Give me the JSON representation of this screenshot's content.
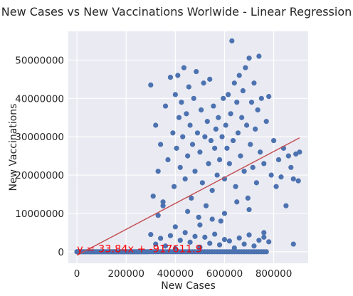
{
  "chart_data": {
    "type": "scatter",
    "title": "New Cases vs New Vaccinations Worlwide - Linear Regression",
    "xlabel": "New Cases",
    "ylabel": "New Vaccinations",
    "xlim": [
      -35000,
      940000
    ],
    "ylim": [
      -3000000,
      57500000
    ],
    "xticks": [
      0,
      200000,
      400000,
      600000,
      800000
    ],
    "yticks": [
      0,
      10000000,
      20000000,
      30000000,
      40000000,
      50000000
    ],
    "grid": true,
    "background": "#eaeaf2",
    "point_color": "#4c72b0",
    "line_color": "#c44e52",
    "annotation_color": "#ff0000",
    "regression": {
      "slope": 33.84,
      "intercept": -917611.9,
      "x_range": [
        0,
        905000
      ]
    },
    "annotation": "y = 33.84x + -917611.9",
    "points": [
      [
        0,
        0
      ],
      [
        0,
        0
      ],
      [
        4000,
        0
      ],
      [
        8000,
        0
      ],
      [
        12000,
        0
      ],
      [
        16000,
        0
      ],
      [
        20000,
        0
      ],
      [
        25000,
        0
      ],
      [
        30000,
        0
      ],
      [
        35000,
        0
      ],
      [
        40000,
        0
      ],
      [
        45000,
        0
      ],
      [
        50000,
        0
      ],
      [
        55000,
        0
      ],
      [
        60000,
        0
      ],
      [
        65000,
        0
      ],
      [
        70000,
        0
      ],
      [
        75000,
        0
      ],
      [
        80000,
        0
      ],
      [
        85000,
        0
      ],
      [
        90000,
        0
      ],
      [
        95000,
        0
      ],
      [
        100000,
        0
      ],
      [
        105000,
        0
      ],
      [
        110000,
        0
      ],
      [
        115000,
        0
      ],
      [
        120000,
        0
      ],
      [
        125000,
        0
      ],
      [
        130000,
        0
      ],
      [
        135000,
        0
      ],
      [
        140000,
        0
      ],
      [
        145000,
        0
      ],
      [
        150000,
        0
      ],
      [
        155000,
        0
      ],
      [
        160000,
        0
      ],
      [
        165000,
        0
      ],
      [
        170000,
        0
      ],
      [
        175000,
        0
      ],
      [
        180000,
        0
      ],
      [
        185000,
        0
      ],
      [
        190000,
        0
      ],
      [
        195000,
        0
      ],
      [
        200000,
        0
      ],
      [
        205000,
        0
      ],
      [
        210000,
        0
      ],
      [
        215000,
        0
      ],
      [
        220000,
        0
      ],
      [
        225000,
        0
      ],
      [
        230000,
        0
      ],
      [
        235000,
        0
      ],
      [
        240000,
        0
      ],
      [
        245000,
        0
      ],
      [
        250000,
        0
      ],
      [
        255000,
        0
      ],
      [
        260000,
        0
      ],
      [
        265000,
        0
      ],
      [
        270000,
        0
      ],
      [
        275000,
        0
      ],
      [
        280000,
        0
      ],
      [
        285000,
        0
      ],
      [
        290000,
        0
      ],
      [
        300000,
        0
      ],
      [
        310000,
        0
      ],
      [
        320000,
        0
      ],
      [
        330000,
        0
      ],
      [
        340000,
        0
      ],
      [
        350000,
        0
      ],
      [
        360000,
        0
      ],
      [
        370000,
        0
      ],
      [
        380000,
        0
      ],
      [
        390000,
        0
      ],
      [
        400000,
        0
      ],
      [
        410000,
        0
      ],
      [
        420000,
        0
      ],
      [
        430000,
        0
      ],
      [
        440000,
        0
      ],
      [
        450000,
        0
      ],
      [
        460000,
        0
      ],
      [
        470000,
        0
      ],
      [
        480000,
        0
      ],
      [
        490000,
        0
      ],
      [
        500000,
        0
      ],
      [
        510000,
        0
      ],
      [
        520000,
        0
      ],
      [
        530000,
        0
      ],
      [
        540000,
        0
      ],
      [
        550000,
        0
      ],
      [
        560000,
        0
      ],
      [
        570000,
        0
      ],
      [
        580000,
        0
      ],
      [
        590000,
        0
      ],
      [
        600000,
        0
      ],
      [
        610000,
        0
      ],
      [
        620000,
        0
      ],
      [
        630000,
        0
      ],
      [
        640000,
        0
      ],
      [
        650000,
        0
      ],
      [
        660000,
        0
      ],
      [
        670000,
        0
      ],
      [
        680000,
        0
      ],
      [
        690000,
        0
      ],
      [
        700000,
        0
      ],
      [
        710000,
        0
      ],
      [
        720000,
        0
      ],
      [
        730000,
        0
      ],
      [
        740000,
        0
      ],
      [
        750000,
        0
      ],
      [
        760000,
        0
      ],
      [
        770000,
        0
      ],
      [
        300000,
        4500000
      ],
      [
        320000,
        2000000
      ],
      [
        340000,
        3500000
      ],
      [
        360000,
        1500000
      ],
      [
        380000,
        4200000
      ],
      [
        400000,
        800000
      ],
      [
        420000,
        3000000
      ],
      [
        440000,
        5000000
      ],
      [
        460000,
        2500000
      ],
      [
        480000,
        4000000
      ],
      [
        500000,
        1200000
      ],
      [
        520000,
        3800000
      ],
      [
        540000,
        2200000
      ],
      [
        560000,
        4600000
      ],
      [
        580000,
        1800000
      ],
      [
        600000,
        3200000
      ],
      [
        620000,
        2800000
      ],
      [
        640000,
        1000000
      ],
      [
        660000,
        3600000
      ],
      [
        680000,
        2000000
      ],
      [
        700000,
        4400000
      ],
      [
        720000,
        1500000
      ],
      [
        740000,
        3000000
      ],
      [
        760000,
        3800000
      ],
      [
        780000,
        2600000
      ],
      [
        760000,
        5000000
      ],
      [
        300000,
        43500000
      ],
      [
        310000,
        14500000
      ],
      [
        320000,
        33000000
      ],
      [
        330000,
        21000000
      ],
      [
        340000,
        28000000
      ],
      [
        350000,
        12000000
      ],
      [
        360000,
        38000000
      ],
      [
        370000,
        24000000
      ],
      [
        380000,
        45500000
      ],
      [
        390000,
        31000000
      ],
      [
        395000,
        17000000
      ],
      [
        400000,
        41000000
      ],
      [
        405000,
        27000000
      ],
      [
        410000,
        46000000
      ],
      [
        415000,
        35000000
      ],
      [
        420000,
        22000000
      ],
      [
        425000,
        39000000
      ],
      [
        430000,
        30000000
      ],
      [
        435000,
        48000000
      ],
      [
        440000,
        19000000
      ],
      [
        445000,
        36000000
      ],
      [
        450000,
        25000000
      ],
      [
        455000,
        43000000
      ],
      [
        460000,
        33000000
      ],
      [
        465000,
        14000000
      ],
      [
        470000,
        28000000
      ],
      [
        475000,
        40000000
      ],
      [
        480000,
        21000000
      ],
      [
        485000,
        47000000
      ],
      [
        490000,
        31000000
      ],
      [
        495000,
        9000000
      ],
      [
        500000,
        26000000
      ],
      [
        505000,
        37000000
      ],
      [
        510000,
        18000000
      ],
      [
        515000,
        44000000
      ],
      [
        520000,
        30000000
      ],
      [
        525000,
        12000000
      ],
      [
        530000,
        34000000
      ],
      [
        535000,
        23000000
      ],
      [
        540000,
        45000000
      ],
      [
        545000,
        29000000
      ],
      [
        550000,
        16000000
      ],
      [
        555000,
        38000000
      ],
      [
        560000,
        27000000
      ],
      [
        565000,
        32000000
      ],
      [
        570000,
        20000000
      ],
      [
        575000,
        35000000
      ],
      [
        580000,
        24000000
      ],
      [
        585000,
        8000000
      ],
      [
        590000,
        30000000
      ],
      [
        595000,
        40000000
      ],
      [
        600000,
        19000000
      ],
      [
        605000,
        33000000
      ],
      [
        610000,
        27000000
      ],
      [
        615000,
        41000000
      ],
      [
        620000,
        23000000
      ],
      [
        625000,
        36000000
      ],
      [
        630000,
        55000000
      ],
      [
        635000,
        29000000
      ],
      [
        640000,
        44000000
      ],
      [
        645000,
        17000000
      ],
      [
        650000,
        39000000
      ],
      [
        655000,
        31000000
      ],
      [
        660000,
        46000000
      ],
      [
        665000,
        25000000
      ],
      [
        670000,
        35000000
      ],
      [
        675000,
        42000000
      ],
      [
        680000,
        21000000
      ],
      [
        685000,
        48000000
      ],
      [
        690000,
        33000000
      ],
      [
        695000,
        14000000
      ],
      [
        700000,
        50500000
      ],
      [
        705000,
        28000000
      ],
      [
        710000,
        39000000
      ],
      [
        715000,
        22000000
      ],
      [
        720000,
        44000000
      ],
      [
        725000,
        32000000
      ],
      [
        730000,
        18000000
      ],
      [
        735000,
        37000000
      ],
      [
        740000,
        51000000
      ],
      [
        745000,
        26000000
      ],
      [
        750000,
        40000000
      ],
      [
        760000,
        23000000
      ],
      [
        770000,
        34000000
      ],
      [
        780000,
        40500000
      ],
      [
        790000,
        20000000
      ],
      [
        800000,
        29000000
      ],
      [
        810000,
        17000000
      ],
      [
        820000,
        24000000
      ],
      [
        830000,
        19500000
      ],
      [
        840000,
        27000000
      ],
      [
        850000,
        12000000
      ],
      [
        860000,
        25000000
      ],
      [
        870000,
        22000000
      ],
      [
        880000,
        19000000
      ],
      [
        890000,
        25500000
      ],
      [
        900000,
        18500000
      ],
      [
        905000,
        26000000
      ],
      [
        880000,
        2000000
      ],
      [
        700000,
        11000000
      ],
      [
        650000,
        13000000
      ],
      [
        600000,
        10000000
      ],
      [
        550000,
        8500000
      ],
      [
        500000,
        7000000
      ],
      [
        450000,
        10500000
      ],
      [
        400000,
        6500000
      ],
      [
        350000,
        13000000
      ],
      [
        330000,
        9500000
      ]
    ]
  }
}
